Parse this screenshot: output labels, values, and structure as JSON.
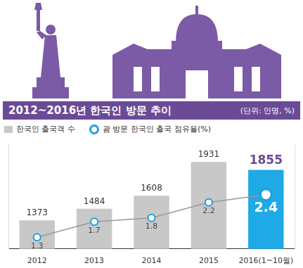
{
  "chart_data": {
    "type": "bar",
    "title": "2012~2016년 한국인 방문 추이",
    "subtitle": "(단위: 만명, %)",
    "categories": [
      "2012",
      "2013",
      "2014",
      "2015",
      "2016(1~10월)"
    ],
    "series": [
      {
        "name": "한국인 출국객 수",
        "type": "bar",
        "color": "#c8c8c8",
        "colors": [
          "#c8c8c8",
          "#c8c8c8",
          "#c8c8c8",
          "#c8c8c8",
          "#1fa9e6"
        ],
        "values": [
          1373,
          1484,
          1608,
          1931,
          1855
        ]
      },
      {
        "name": "괌 방문 한국인 출국 점유율(%)",
        "type": "line",
        "axis": "y2",
        "color": "#999999",
        "marker": "circle",
        "values": [
          1.3,
          1.7,
          1.8,
          2.2,
          2.4
        ]
      }
    ],
    "ylim": [
      1100,
      2100
    ],
    "y2lim": [
      1,
      3.7
    ],
    "grid": false,
    "legend": "top-left",
    "data_labels": true,
    "tick_labels": false
  }
}
